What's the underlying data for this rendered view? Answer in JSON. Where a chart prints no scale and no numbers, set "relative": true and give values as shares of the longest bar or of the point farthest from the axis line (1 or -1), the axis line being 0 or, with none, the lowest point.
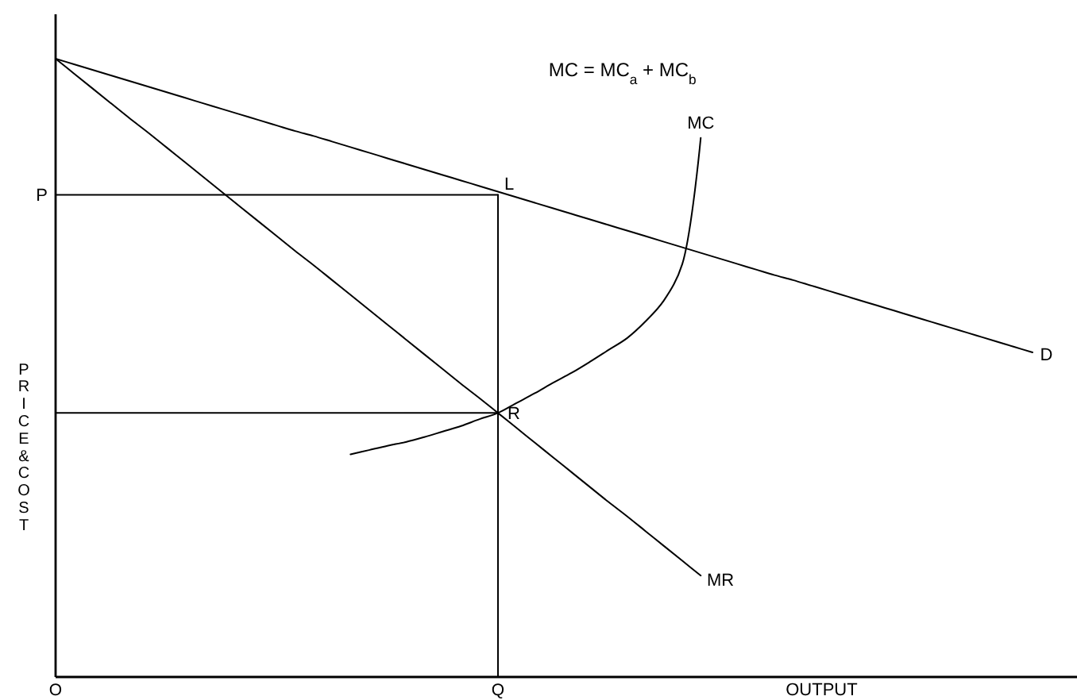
{
  "chart_data": {
    "type": "line",
    "relative": true,
    "xlabel": "OUTPUT",
    "ylabel": "PRICE&COST",
    "categories": [
      "O",
      null,
      null,
      null,
      null,
      null,
      null,
      null,
      null,
      null,
      null,
      null,
      null,
      null,
      null,
      null,
      null,
      null,
      null,
      null,
      null,
      null,
      null,
      null,
      "Q",
      null,
      null,
      null,
      null,
      null,
      null,
      null,
      null,
      null,
      null,
      null,
      null,
      null,
      null,
      null,
      null,
      null,
      null,
      null,
      null,
      null,
      null,
      null,
      null,
      null,
      null,
      null,
      null,
      null
    ],
    "annotations": [
      "MC = MC$_{a}$ + MC$_{b}$",
      {
        "text": "L",
        "x": "Q",
        "y": 0.78
      },
      {
        "text": "R",
        "x": "Q",
        "y": 0.427
      }
    ],
    "series": [
      {
        "name": "D",
        "color": "#000000",
        "values": [
          1,
          0.991,
          0.982,
          0.973,
          0.964,
          0.955,
          0.946,
          0.937,
          0.928,
          0.919,
          0.91,
          0.901,
          0.892,
          0.883,
          0.875,
          0.866,
          0.857,
          0.848,
          0.839,
          0.83,
          0.821,
          0.812,
          0.803,
          0.794,
          0.785,
          0.776,
          0.767,
          0.758,
          0.749,
          0.74,
          0.731,
          0.722,
          0.713,
          0.704,
          0.695,
          0.686,
          0.677,
          0.668,
          0.659,
          0.65,
          0.642,
          0.633,
          0.624,
          0.615,
          0.606,
          0.597,
          0.588,
          0.579,
          0.57,
          0.561,
          0.552,
          0.543,
          0.534,
          0.525
        ]
      },
      {
        "name": "MR",
        "color": "#000000",
        "values": [
          1,
          0.976,
          0.952,
          0.928,
          0.904,
          0.881,
          0.857,
          0.833,
          0.809,
          0.785,
          0.761,
          0.737,
          0.713,
          0.689,
          0.666,
          0.642,
          0.618,
          0.594,
          0.57,
          0.546,
          0.522,
          0.498,
          0.474,
          0.451,
          0.427,
          0.403,
          0.379,
          0.355,
          0.331,
          0.307,
          0.283,
          0.26,
          0.236,
          0.212,
          0.188,
          0.164,
          null,
          null,
          null,
          null,
          null,
          null,
          null,
          null,
          null,
          null,
          null,
          null,
          null,
          null,
          null,
          null,
          null,
          null
        ]
      },
      {
        "name": "MC",
        "color": "#000000",
        "values": [
          null,
          null,
          null,
          null,
          null,
          null,
          null,
          null,
          null,
          null,
          null,
          null,
          null,
          null,
          null,
          null,
          0.36,
          0.367,
          0.374,
          0.38,
          0.388,
          0.397,
          0.406,
          0.417,
          0.427,
          0.443,
          0.459,
          0.476,
          0.492,
          0.51,
          0.529,
          0.548,
          0.575,
          0.609,
          0.668,
          0.872,
          null,
          null,
          null,
          null,
          null,
          null,
          null,
          null,
          null,
          null,
          null,
          null,
          null,
          null,
          null,
          null,
          null,
          null
        ]
      },
      {
        "name": "P",
        "color": "#000000",
        "x": [
          "Q",
          "O"
        ],
        "values": [
          0.78,
          0.78
        ]
      },
      {
        "color": "#000000",
        "x": [
          "O",
          "Q"
        ],
        "values": [
          0.427,
          0.427
        ]
      },
      {
        "color": "#000000",
        "x": [
          "Q",
          "Q"
        ],
        "values": [
          0.78,
          0
        ]
      }
    ]
  }
}
